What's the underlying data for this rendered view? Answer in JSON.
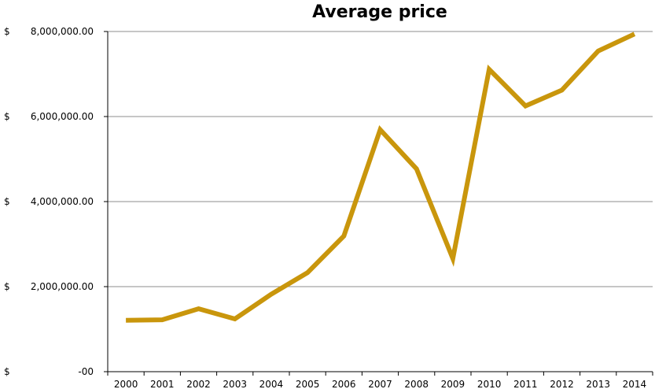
{
  "chart_data": {
    "type": "line",
    "title": "Average price",
    "xlabel": "",
    "ylabel": "",
    "x": [
      "2000",
      "2001",
      "2002",
      "2003",
      "2004",
      "2005",
      "2006",
      "2007",
      "2008",
      "2009",
      "2010",
      "2011",
      "2012",
      "2013",
      "2014"
    ],
    "series": [
      {
        "values": [
          1210000,
          1220000,
          1480000,
          1240000,
          1820000,
          2330000,
          3190000,
          5690000,
          4770000,
          2660000,
          7110000,
          6250000,
          6620000,
          7540000,
          7940000
        ],
        "color": "#C9960C"
      }
    ],
    "ylim": [
      0,
      8000000
    ],
    "y_ticks": [
      0,
      2000000,
      4000000,
      6000000,
      8000000
    ],
    "y_tick_labels": [
      "-00",
      "2,000,000.00",
      "4,000,000.00",
      "6,000,000.00",
      "8,000,000.00"
    ],
    "currency_symbol": "$",
    "grid": true,
    "legend": "none"
  }
}
